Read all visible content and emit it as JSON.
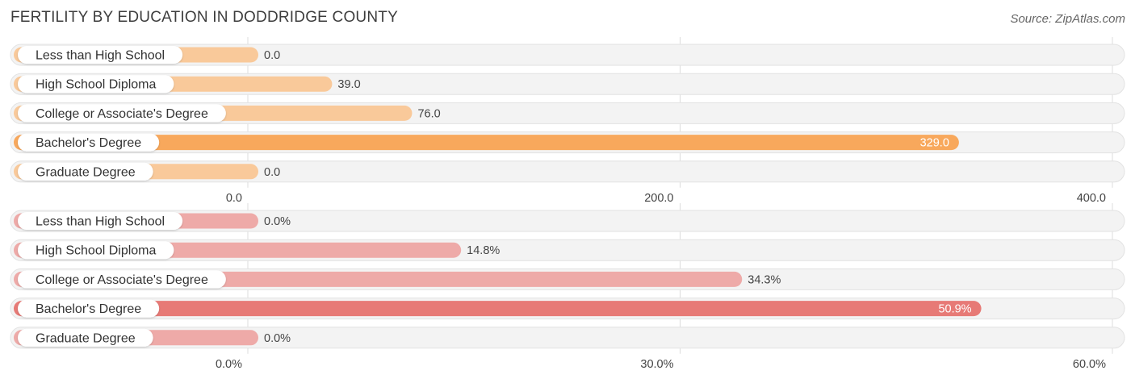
{
  "header": {
    "title": "FERTILITY BY EDUCATION IN DODDRIDGE COUNTY",
    "source": "Source: ZipAtlas.com"
  },
  "chart_data": [
    {
      "type": "bar",
      "orientation": "horizontal",
      "categories": [
        "Less than High School",
        "High School Diploma",
        "College or Associate's Degree",
        "Bachelor's Degree",
        "Graduate Degree"
      ],
      "values": [
        0.0,
        39.0,
        76.0,
        329.0,
        0.0
      ],
      "value_labels": [
        "0.0",
        "39.0",
        "76.0",
        "329.0",
        "0.0"
      ],
      "xlim": [
        0,
        400
      ],
      "ticks": [
        0,
        200,
        400
      ],
      "tick_labels": [
        "0.0",
        "200.0",
        "400.0"
      ],
      "highlight_index": 3,
      "colors": {
        "bar": "#f9c99a",
        "highlight": "#f8a85c"
      }
    },
    {
      "type": "bar",
      "orientation": "horizontal",
      "categories": [
        "Less than High School",
        "High School Diploma",
        "College or Associate's Degree",
        "Bachelor's Degree",
        "Graduate Degree"
      ],
      "values": [
        0.0,
        14.8,
        34.3,
        50.9,
        0.0
      ],
      "value_labels": [
        "0.0%",
        "14.8%",
        "34.3%",
        "50.9%",
        "0.0%"
      ],
      "xlim": [
        0,
        60
      ],
      "ticks": [
        0,
        30,
        60
      ],
      "tick_labels": [
        "0.0%",
        "30.0%",
        "60.0%"
      ],
      "highlight_index": 3,
      "colors": {
        "bar": "#eeaaa8",
        "highlight": "#e77a76"
      }
    }
  ]
}
